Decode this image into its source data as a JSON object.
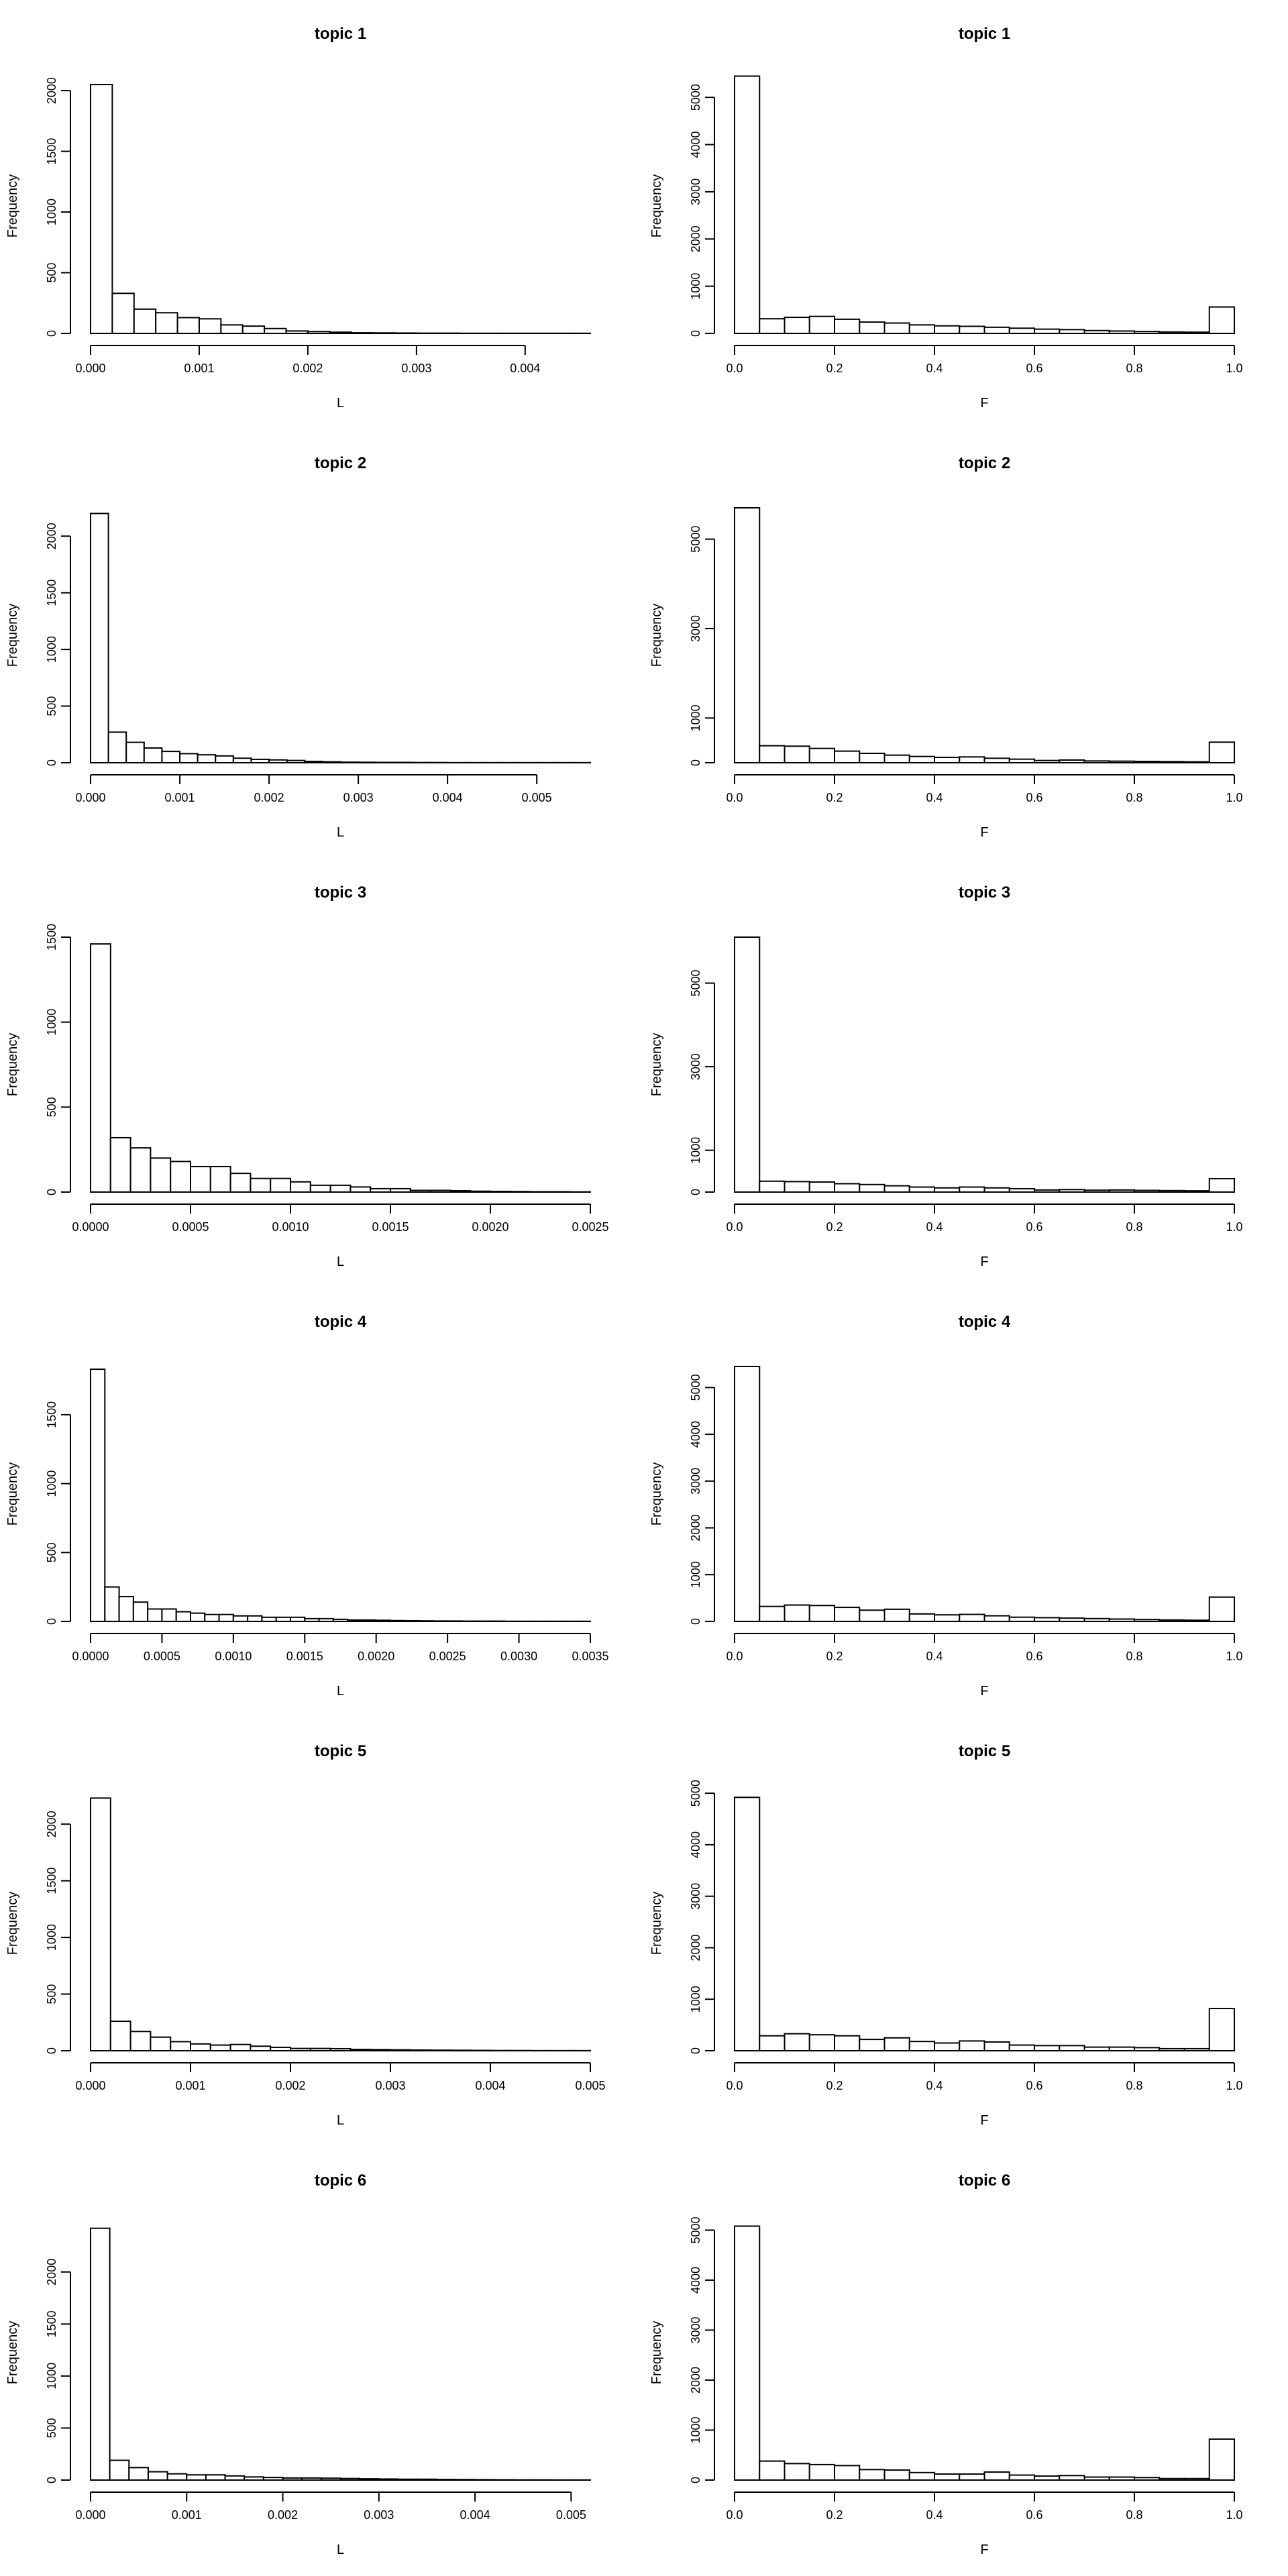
{
  "chart_data": [
    {
      "type": "bar",
      "title": "topic 1",
      "xlabel": "L",
      "ylabel": "Frequency",
      "xlim": [
        0,
        0.0046
      ],
      "ylim": [
        0,
        2100
      ],
      "xticks": [
        0.0,
        0.001,
        0.002,
        0.003,
        0.004
      ],
      "xtick_labels": [
        "0.000",
        "0.001",
        "0.002",
        "0.003",
        "0.004"
      ],
      "yticks": [
        0,
        500,
        1000,
        1500,
        2000
      ],
      "bin_edges": [
        0,
        0.0002,
        0.0004,
        0.0006,
        0.0008,
        0.001,
        0.0012,
        0.0014,
        0.0016,
        0.0018,
        0.002,
        0.0022,
        0.0024,
        0.0026,
        0.0028,
        0.003,
        0.0032,
        0.0034,
        0.0036,
        0.0038,
        0.004,
        0.0042,
        0.0044,
        0.0046
      ],
      "values": [
        2050,
        330,
        200,
        170,
        130,
        120,
        70,
        60,
        40,
        20,
        15,
        10,
        5,
        4,
        3,
        2,
        2,
        1,
        1,
        1,
        1,
        1,
        1
      ]
    },
    {
      "type": "bar",
      "title": "topic 1",
      "xlabel": "F",
      "ylabel": "Frequency",
      "xlim": [
        0,
        1
      ],
      "ylim": [
        0,
        5400
      ],
      "xticks": [
        0,
        0.2,
        0.4,
        0.6,
        0.8,
        1.0
      ],
      "xtick_labels": [
        "0.0",
        "0.2",
        "0.4",
        "0.6",
        "0.8",
        "1.0"
      ],
      "yticks": [
        0,
        1000,
        2000,
        3000,
        4000,
        5000
      ],
      "bin_edges": [
        0,
        0.05,
        0.1,
        0.15,
        0.2,
        0.25,
        0.3,
        0.35,
        0.4,
        0.45,
        0.5,
        0.55,
        0.6,
        0.65,
        0.7,
        0.75,
        0.8,
        0.85,
        0.9,
        0.95,
        1.0
      ],
      "values": [
        5450,
        310,
        340,
        360,
        300,
        240,
        220,
        180,
        160,
        150,
        130,
        110,
        90,
        80,
        60,
        50,
        40,
        30,
        25,
        560
      ]
    },
    {
      "type": "bar",
      "title": "topic 2",
      "xlabel": "L",
      "ylabel": "Frequency",
      "xlim": [
        0,
        0.0056
      ],
      "ylim": [
        0,
        2250
      ],
      "xticks": [
        0.0,
        0.001,
        0.002,
        0.003,
        0.004,
        0.005
      ],
      "xtick_labels": [
        "0.000",
        "0.001",
        "0.002",
        "0.003",
        "0.004",
        "0.005"
      ],
      "yticks": [
        0,
        500,
        1000,
        1500,
        2000
      ],
      "bin_edges": [
        0,
        0.0002,
        0.0004,
        0.0006,
        0.0008,
        0.001,
        0.0012,
        0.0014,
        0.0016,
        0.0018,
        0.002,
        0.0022,
        0.0024,
        0.0026,
        0.0028,
        0.003,
        0.0032,
        0.0034,
        0.0036,
        0.0038,
        0.004,
        0.0042,
        0.0044,
        0.0046,
        0.0048,
        0.005,
        0.0052,
        0.0054,
        0.0056
      ],
      "values": [
        2200,
        270,
        180,
        130,
        100,
        80,
        70,
        60,
        40,
        30,
        25,
        20,
        12,
        8,
        5,
        4,
        3,
        3,
        2,
        2,
        1,
        1,
        1,
        1,
        1,
        1,
        1,
        1
      ]
    },
    {
      "type": "bar",
      "title": "topic 2",
      "xlabel": "F",
      "ylabel": "Frequency",
      "xlim": [
        0,
        1
      ],
      "ylim": [
        0,
        5700
      ],
      "xticks": [
        0,
        0.2,
        0.4,
        0.6,
        0.8,
        1.0
      ],
      "xtick_labels": [
        "0.0",
        "0.2",
        "0.4",
        "0.6",
        "0.8",
        "1.0"
      ],
      "yticks": [
        0,
        1000,
        3000,
        5000
      ],
      "bin_edges": [
        0,
        0.05,
        0.1,
        0.15,
        0.2,
        0.25,
        0.3,
        0.35,
        0.4,
        0.45,
        0.5,
        0.55,
        0.6,
        0.65,
        0.7,
        0.75,
        0.8,
        0.85,
        0.9,
        0.95,
        1.0
      ],
      "values": [
        5700,
        380,
        370,
        320,
        260,
        210,
        170,
        140,
        120,
        130,
        100,
        80,
        50,
        60,
        40,
        35,
        30,
        25,
        20,
        460
      ]
    },
    {
      "type": "bar",
      "title": "topic 3",
      "xlabel": "L",
      "ylabel": "Frequency",
      "xlim": [
        0,
        0.0025
      ],
      "ylim": [
        0,
        1500
      ],
      "xticks": [
        0.0,
        0.0005,
        0.001,
        0.0015,
        0.002,
        0.0025
      ],
      "xtick_labels": [
        "0.0000",
        "0.0005",
        "0.0010",
        "0.0015",
        "0.0020",
        "0.0025"
      ],
      "yticks": [
        0,
        500,
        1000,
        1500
      ],
      "bin_edges": [
        0,
        0.0001,
        0.0002,
        0.0003,
        0.0004,
        0.0005,
        0.0006,
        0.0007,
        0.0008,
        0.0009,
        0.001,
        0.0011,
        0.0012,
        0.0013,
        0.0014,
        0.0015,
        0.0016,
        0.0017,
        0.0018,
        0.0019,
        0.002,
        0.0021,
        0.0022,
        0.0023,
        0.0024,
        0.0025
      ],
      "values": [
        1460,
        320,
        260,
        200,
        180,
        150,
        150,
        110,
        80,
        80,
        60,
        40,
        40,
        30,
        20,
        20,
        10,
        10,
        8,
        5,
        4,
        3,
        2,
        2,
        1
      ]
    },
    {
      "type": "bar",
      "title": "topic 3",
      "xlabel": "F",
      "ylabel": "Frequency",
      "xlim": [
        0,
        1
      ],
      "ylim": [
        0,
        6100
      ],
      "xticks": [
        0,
        0.2,
        0.4,
        0.6,
        0.8,
        1.0
      ],
      "xtick_labels": [
        "0.0",
        "0.2",
        "0.4",
        "0.6",
        "0.8",
        "1.0"
      ],
      "yticks": [
        0,
        1000,
        3000,
        5000
      ],
      "bin_edges": [
        0,
        0.05,
        0.1,
        0.15,
        0.2,
        0.25,
        0.3,
        0.35,
        0.4,
        0.45,
        0.5,
        0.55,
        0.6,
        0.65,
        0.7,
        0.75,
        0.8,
        0.85,
        0.9,
        0.95,
        1.0
      ],
      "values": [
        6100,
        260,
        250,
        240,
        200,
        180,
        150,
        120,
        100,
        120,
        100,
        80,
        50,
        60,
        45,
        50,
        40,
        35,
        30,
        320
      ]
    },
    {
      "type": "bar",
      "title": "topic 4",
      "xlabel": "L",
      "ylabel": "Frequency",
      "xlim": [
        0,
        0.0035
      ],
      "ylim": [
        0,
        1850
      ],
      "xticks": [
        0.0,
        0.0005,
        0.001,
        0.0015,
        0.002,
        0.0025,
        0.003,
        0.0035
      ],
      "xtick_labels": [
        "0.0000",
        "0.0005",
        "0.0010",
        "0.0015",
        "0.0020",
        "0.0025",
        "0.0030",
        "0.0035"
      ],
      "yticks": [
        0,
        500,
        1000,
        1500
      ],
      "bin_edges": [
        0,
        0.0001,
        0.0002,
        0.0003,
        0.0004,
        0.0005,
        0.0006,
        0.0007,
        0.0008,
        0.0009,
        0.001,
        0.0011,
        0.0012,
        0.0013,
        0.0014,
        0.0015,
        0.0016,
        0.0017,
        0.0018,
        0.0019,
        0.002,
        0.0021,
        0.0022,
        0.0023,
        0.0024,
        0.0025,
        0.0026,
        0.0027,
        0.0028,
        0.0029,
        0.003,
        0.0031,
        0.0032,
        0.0033,
        0.0034,
        0.0035
      ],
      "values": [
        1830,
        250,
        180,
        140,
        90,
        90,
        70,
        60,
        50,
        50,
        40,
        40,
        30,
        30,
        30,
        20,
        20,
        15,
        10,
        10,
        8,
        6,
        5,
        4,
        3,
        3,
        2,
        2,
        2,
        1,
        1,
        1,
        1,
        1,
        1
      ]
    },
    {
      "type": "bar",
      "title": "topic 4",
      "xlabel": "F",
      "ylabel": "Frequency",
      "xlim": [
        0,
        1
      ],
      "ylim": [
        0,
        5450
      ],
      "xticks": [
        0,
        0.2,
        0.4,
        0.6,
        0.8,
        1.0
      ],
      "xtick_labels": [
        "0.0",
        "0.2",
        "0.4",
        "0.6",
        "0.8",
        "1.0"
      ],
      "yticks": [
        0,
        1000,
        2000,
        3000,
        4000,
        5000
      ],
      "bin_edges": [
        0,
        0.05,
        0.1,
        0.15,
        0.2,
        0.25,
        0.3,
        0.35,
        0.4,
        0.45,
        0.5,
        0.55,
        0.6,
        0.65,
        0.7,
        0.75,
        0.8,
        0.85,
        0.9,
        0.95,
        1.0
      ],
      "values": [
        5450,
        320,
        350,
        340,
        300,
        240,
        260,
        160,
        140,
        150,
        120,
        90,
        80,
        70,
        60,
        50,
        40,
        30,
        25,
        520
      ]
    },
    {
      "type": "bar",
      "title": "topic 5",
      "xlabel": "L",
      "ylabel": "Frequency",
      "xlim": [
        0,
        0.005
      ],
      "ylim": [
        0,
        2250
      ],
      "xticks": [
        0.0,
        0.001,
        0.002,
        0.003,
        0.004,
        0.005
      ],
      "xtick_labels": [
        "0.000",
        "0.001",
        "0.002",
        "0.003",
        "0.004",
        "0.005"
      ],
      "yticks": [
        0,
        500,
        1000,
        1500,
        2000
      ],
      "bin_edges": [
        0,
        0.0002,
        0.0004,
        0.0006,
        0.0008,
        0.001,
        0.0012,
        0.0014,
        0.0016,
        0.0018,
        0.002,
        0.0022,
        0.0024,
        0.0026,
        0.0028,
        0.003,
        0.0032,
        0.0034,
        0.0036,
        0.0038,
        0.004,
        0.0042,
        0.0044,
        0.0046,
        0.0048,
        0.005
      ],
      "values": [
        2230,
        260,
        170,
        120,
        80,
        60,
        50,
        55,
        40,
        30,
        20,
        20,
        18,
        12,
        10,
        8,
        6,
        5,
        4,
        3,
        2,
        2,
        1,
        1,
        1
      ]
    },
    {
      "type": "bar",
      "title": "topic 5",
      "xlabel": "F",
      "ylabel": "Frequency",
      "xlim": [
        0,
        1
      ],
      "ylim": [
        0,
        4950
      ],
      "xticks": [
        0,
        0.2,
        0.4,
        0.6,
        0.8,
        1.0
      ],
      "xtick_labels": [
        "0.0",
        "0.2",
        "0.4",
        "0.6",
        "0.8",
        "1.0"
      ],
      "yticks": [
        0,
        1000,
        2000,
        3000,
        4000,
        5000
      ],
      "bin_edges": [
        0,
        0.05,
        0.1,
        0.15,
        0.2,
        0.25,
        0.3,
        0.35,
        0.4,
        0.45,
        0.5,
        0.55,
        0.6,
        0.65,
        0.7,
        0.75,
        0.8,
        0.85,
        0.9,
        0.95,
        1.0
      ],
      "values": [
        4920,
        290,
        330,
        310,
        290,
        220,
        250,
        180,
        150,
        190,
        170,
        110,
        100,
        100,
        70,
        70,
        60,
        40,
        40,
        820
      ]
    },
    {
      "type": "bar",
      "title": "topic 6",
      "xlabel": "L",
      "ylabel": "Frequency",
      "xlim": [
        0,
        0.0052
      ],
      "ylim": [
        0,
        2450
      ],
      "xticks": [
        0.0,
        0.001,
        0.002,
        0.003,
        0.004,
        0.005
      ],
      "xtick_labels": [
        "0.000",
        "0.001",
        "0.002",
        "0.003",
        "0.004",
        "0.005"
      ],
      "yticks": [
        0,
        500,
        1000,
        1500,
        2000
      ],
      "bin_edges": [
        0,
        0.0002,
        0.0004,
        0.0006,
        0.0008,
        0.001,
        0.0012,
        0.0014,
        0.0016,
        0.0018,
        0.002,
        0.0022,
        0.0024,
        0.0026,
        0.0028,
        0.003,
        0.0032,
        0.0034,
        0.0036,
        0.0038,
        0.004,
        0.0042,
        0.0044,
        0.0046,
        0.0048,
        0.005,
        0.0052
      ],
      "values": [
        2420,
        190,
        120,
        80,
        60,
        50,
        50,
        40,
        30,
        25,
        20,
        20,
        18,
        15,
        12,
        10,
        8,
        8,
        6,
        5,
        4,
        3,
        2,
        2,
        1,
        1
      ]
    },
    {
      "type": "bar",
      "title": "topic 6",
      "xlabel": "F",
      "ylabel": "Frequency",
      "xlim": [
        0,
        1
      ],
      "ylim": [
        0,
        5100
      ],
      "xticks": [
        0,
        0.2,
        0.4,
        0.6,
        0.8,
        1.0
      ],
      "xtick_labels": [
        "0.0",
        "0.2",
        "0.4",
        "0.6",
        "0.8",
        "1.0"
      ],
      "yticks": [
        0,
        1000,
        2000,
        3000,
        4000,
        5000
      ],
      "bin_edges": [
        0,
        0.05,
        0.1,
        0.15,
        0.2,
        0.25,
        0.3,
        0.35,
        0.4,
        0.45,
        0.5,
        0.55,
        0.6,
        0.65,
        0.7,
        0.75,
        0.8,
        0.85,
        0.9,
        0.95,
        1.0
      ],
      "values": [
        5080,
        380,
        330,
        310,
        290,
        210,
        200,
        150,
        120,
        120,
        160,
        100,
        80,
        90,
        60,
        60,
        50,
        30,
        30,
        820
      ]
    }
  ]
}
